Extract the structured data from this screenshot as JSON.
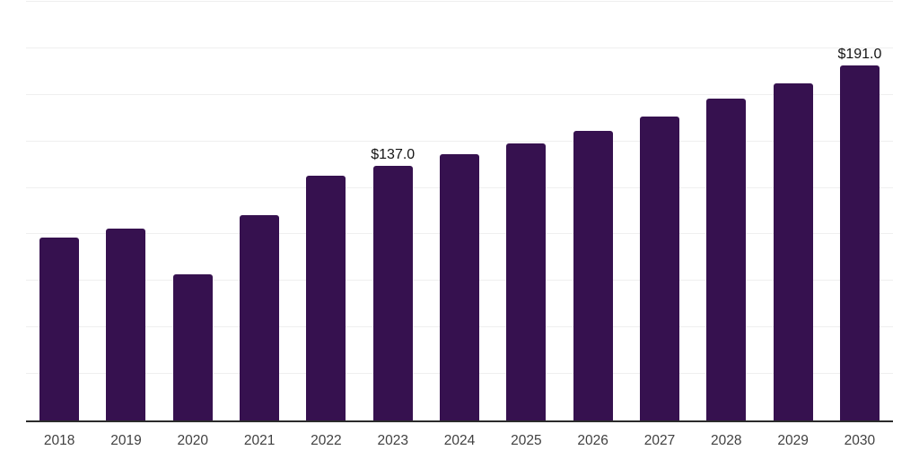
{
  "chart_data": {
    "type": "bar",
    "title": "",
    "xlabel": "",
    "ylabel": "",
    "categories": [
      "2018",
      "2019",
      "2020",
      "2021",
      "2022",
      "2023",
      "2024",
      "2025",
      "2026",
      "2027",
      "2028",
      "2029",
      "2030"
    ],
    "values": [
      98.4,
      102.9,
      78.7,
      110.4,
      131.5,
      137.0,
      142.9,
      148.8,
      155.4,
      163.2,
      172.8,
      181.3,
      191.0
    ],
    "data_labels": [
      "",
      "",
      "",
      "",
      "",
      "$137.0",
      "",
      "",
      "",
      "",
      "",
      "",
      "$191.0"
    ],
    "ylim": [
      0,
      225
    ],
    "gridline_step": 25,
    "grid": true,
    "legend": false,
    "colors": {
      "background": "#ffffff",
      "bar": "#36114f",
      "gridline": "#efefef",
      "axis": "#2b2b2b",
      "tick_label": "#414141",
      "data_label": "#141414"
    }
  }
}
